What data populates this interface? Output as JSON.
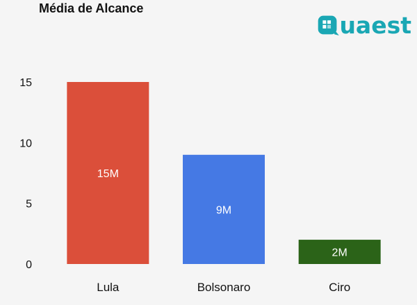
{
  "logo": {
    "text": "uaest",
    "color": "#1aa7b4"
  },
  "chart_data": {
    "type": "bar",
    "title": "Média de Alcance",
    "categories": [
      "Lula",
      "Bolsonaro",
      "Ciro"
    ],
    "values": [
      15,
      9,
      2
    ],
    "data_labels": [
      "15M",
      "9M",
      "2M"
    ],
    "colors": [
      "#db4f3a",
      "#4579e4",
      "#2b6318"
    ],
    "yticks": [
      "0",
      "5",
      "10",
      "15"
    ],
    "ylim": [
      0,
      15
    ],
    "xlabel": "",
    "ylabel": "",
    "grid": false
  }
}
